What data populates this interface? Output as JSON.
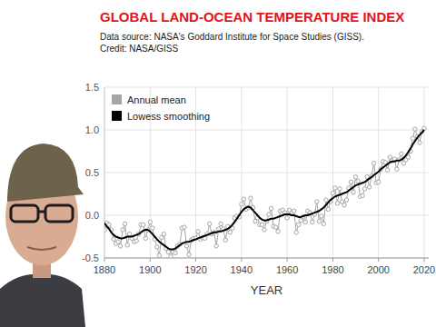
{
  "chart_data": {
    "type": "line",
    "title": "GLOBAL LAND-OCEAN TEMPERATURE INDEX",
    "subtitle": "Data source: NASA's Goddard Institute for Space Studies (GISS).",
    "annotations": [
      "Credit: NASA/GISS"
    ],
    "x_label": "YEAR",
    "x": [
      1880,
      1881,
      1882,
      1883,
      1884,
      1885,
      1886,
      1887,
      1888,
      1889,
      1890,
      1891,
      1892,
      1893,
      1894,
      1895,
      1896,
      1897,
      1898,
      1899,
      1900,
      1901,
      1902,
      1903,
      1904,
      1905,
      1906,
      1907,
      1908,
      1909,
      1910,
      1911,
      1912,
      1913,
      1914,
      1915,
      1916,
      1917,
      1918,
      1919,
      1920,
      1921,
      1922,
      1923,
      1924,
      1925,
      1926,
      1927,
      1928,
      1929,
      1930,
      1931,
      1932,
      1933,
      1934,
      1935,
      1936,
      1937,
      1938,
      1939,
      1940,
      1941,
      1942,
      1943,
      1944,
      1945,
      1946,
      1947,
      1948,
      1949,
      1950,
      1951,
      1952,
      1953,
      1954,
      1955,
      1956,
      1957,
      1958,
      1959,
      1960,
      1961,
      1962,
      1963,
      1964,
      1965,
      1966,
      1967,
      1968,
      1969,
      1970,
      1971,
      1972,
      1973,
      1974,
      1975,
      1976,
      1977,
      1978,
      1979,
      1980,
      1981,
      1982,
      1983,
      1984,
      1985,
      1986,
      1987,
      1988,
      1989,
      1990,
      1991,
      1992,
      1993,
      1994,
      1995,
      1996,
      1997,
      1998,
      1999,
      2000,
      2001,
      2002,
      2003,
      2004,
      2005,
      2006,
      2007,
      2008,
      2009,
      2010,
      2011,
      2012,
      2013,
      2014,
      2015,
      2016,
      2017,
      2018,
      2019,
      2020
    ],
    "series": [
      {
        "name": "Annual mean",
        "color": "#a6a6a6",
        "marker": "circle",
        "line_style": "solid",
        "values": [
          -0.17,
          -0.09,
          -0.11,
          -0.17,
          -0.28,
          -0.33,
          -0.31,
          -0.36,
          -0.17,
          -0.1,
          -0.35,
          -0.22,
          -0.27,
          -0.31,
          -0.3,
          -0.22,
          -0.11,
          -0.11,
          -0.27,
          -0.17,
          -0.08,
          -0.15,
          -0.28,
          -0.37,
          -0.47,
          -0.26,
          -0.22,
          -0.39,
          -0.43,
          -0.48,
          -0.43,
          -0.44,
          -0.36,
          -0.34,
          -0.15,
          -0.14,
          -0.36,
          -0.46,
          -0.29,
          -0.27,
          -0.27,
          -0.19,
          -0.28,
          -0.26,
          -0.27,
          -0.22,
          -0.1,
          -0.22,
          -0.2,
          -0.36,
          -0.16,
          -0.1,
          -0.16,
          -0.29,
          -0.13,
          -0.2,
          -0.15,
          -0.03,
          -0.01,
          -0.02,
          0.13,
          0.19,
          0.07,
          0.09,
          0.2,
          0.09,
          -0.07,
          -0.03,
          -0.11,
          -0.11,
          -0.17,
          -0.07,
          0.01,
          0.08,
          -0.13,
          -0.14,
          -0.19,
          0.05,
          0.06,
          0.03,
          -0.03,
          0.06,
          0.03,
          0.05,
          -0.2,
          -0.11,
          -0.06,
          -0.02,
          -0.08,
          0.05,
          0.03,
          -0.08,
          0.01,
          0.16,
          -0.07,
          -0.01,
          -0.1,
          0.18,
          0.07,
          0.16,
          0.26,
          0.32,
          0.14,
          0.31,
          0.16,
          0.12,
          0.18,
          0.32,
          0.39,
          0.27,
          0.45,
          0.4,
          0.22,
          0.23,
          0.31,
          0.45,
          0.33,
          0.46,
          0.61,
          0.38,
          0.39,
          0.54,
          0.63,
          0.62,
          0.53,
          0.68,
          0.64,
          0.66,
          0.54,
          0.65,
          0.72,
          0.61,
          0.65,
          0.68,
          0.75,
          0.9,
          1.01,
          0.92,
          0.85,
          0.98,
          1.02
        ]
      },
      {
        "name": "Lowess smoothing",
        "color": "#000000",
        "marker": "none",
        "line_style": "solid",
        "values": [
          -0.09,
          -0.13,
          -0.16,
          -0.2,
          -0.23,
          -0.25,
          -0.26,
          -0.27,
          -0.27,
          -0.26,
          -0.25,
          -0.25,
          -0.25,
          -0.24,
          -0.23,
          -0.22,
          -0.2,
          -0.18,
          -0.17,
          -0.17,
          -0.19,
          -0.22,
          -0.25,
          -0.28,
          -0.31,
          -0.33,
          -0.35,
          -0.37,
          -0.39,
          -0.4,
          -0.4,
          -0.39,
          -0.37,
          -0.35,
          -0.33,
          -0.32,
          -0.31,
          -0.31,
          -0.3,
          -0.29,
          -0.28,
          -0.27,
          -0.26,
          -0.25,
          -0.24,
          -0.23,
          -0.22,
          -0.21,
          -0.2,
          -0.2,
          -0.19,
          -0.19,
          -0.18,
          -0.17,
          -0.16,
          -0.14,
          -0.11,
          -0.08,
          -0.04,
          0.0,
          0.04,
          0.07,
          0.09,
          0.1,
          0.09,
          0.06,
          0.03,
          0.0,
          -0.03,
          -0.05,
          -0.06,
          -0.06,
          -0.05,
          -0.04,
          -0.04,
          -0.03,
          -0.02,
          -0.01,
          0.0,
          0.01,
          0.01,
          0.01,
          0.0,
          0.0,
          -0.01,
          -0.02,
          -0.02,
          -0.01,
          0.0,
          0.0,
          0.01,
          0.02,
          0.03,
          0.04,
          0.05,
          0.07,
          0.09,
          0.12,
          0.15,
          0.18,
          0.2,
          0.22,
          0.23,
          0.24,
          0.25,
          0.26,
          0.27,
          0.29,
          0.31,
          0.33,
          0.35,
          0.36,
          0.37,
          0.38,
          0.39,
          0.41,
          0.43,
          0.45,
          0.47,
          0.49,
          0.51,
          0.54,
          0.56,
          0.58,
          0.6,
          0.62,
          0.63,
          0.63,
          0.64,
          0.64,
          0.65,
          0.67,
          0.7,
          0.74,
          0.78,
          0.83,
          0.87,
          0.91,
          0.94,
          0.97,
          1.0
        ]
      }
    ],
    "xlim": [
      1880,
      2022
    ],
    "xticks": [
      1880,
      1900,
      1920,
      1940,
      1960,
      1980,
      2000,
      2020
    ],
    "ylim": [
      -0.5,
      1.5
    ],
    "yticks": [
      -0.5,
      {
        "value": 0,
        "label": "0.0"
      },
      0.5,
      {
        "value": 1,
        "label": "1.0"
      },
      1.5
    ],
    "grid": true,
    "legend": "upper-left"
  }
}
